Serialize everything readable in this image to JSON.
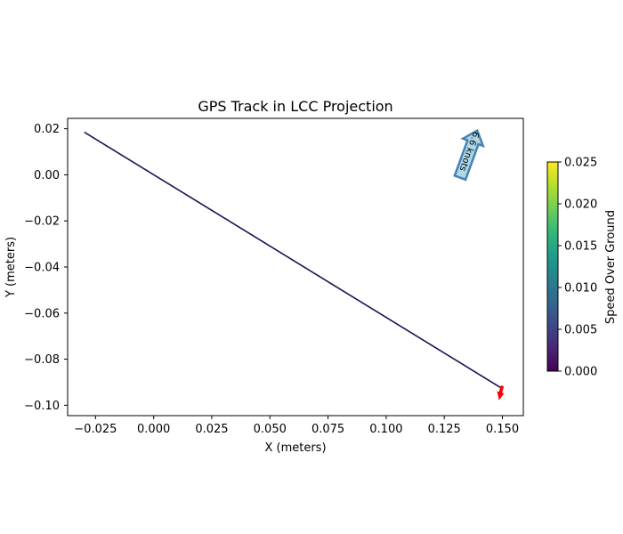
{
  "chart_data": {
    "type": "line",
    "title": "GPS Track in LCC Projection",
    "xlabel": "X (meters)",
    "ylabel": "Y (meters)",
    "xlim": [
      -0.037,
      0.159
    ],
    "ylim": [
      -0.1045,
      0.0245
    ],
    "xticks": [
      -0.025,
      0.0,
      0.025,
      0.05,
      0.075,
      0.1,
      0.125,
      0.15
    ],
    "xtick_labels": [
      "−0.025",
      "0.000",
      "0.025",
      "0.050",
      "0.075",
      "0.100",
      "0.125",
      "0.150"
    ],
    "yticks": [
      0.02,
      0.0,
      -0.02,
      -0.04,
      -0.06,
      -0.08,
      -0.1
    ],
    "ytick_labels": [
      "0.02",
      "0.00",
      "−0.02",
      "−0.04",
      "−0.06",
      "−0.08",
      "−0.10"
    ],
    "grid": false,
    "series": [
      {
        "x": [
          -0.0298,
          0.1495
        ],
        "y": [
          0.0185,
          -0.0925
        ],
        "color": "#1f1056"
      }
    ],
    "end_marker": {
      "x": 0.149,
      "y": -0.0965,
      "color": "#ff0000"
    },
    "annotation": {
      "text": "6.6 knots",
      "x_range": [
        0.13,
        0.141
      ],
      "y_range": [
        -0.0015,
        0.0195
      ],
      "fill": "#add8e6",
      "edge": "#4682b4"
    },
    "colorbar": {
      "label": "Speed Over Ground",
      "min": 0.0,
      "max": 0.025,
      "ticks": [
        0.0,
        0.005,
        0.01,
        0.015,
        0.02,
        0.025
      ],
      "tick_labels": [
        "0.000",
        "0.005",
        "0.010",
        "0.015",
        "0.020",
        "0.025"
      ],
      "colormap": "viridis",
      "colors": [
        "#440154",
        "#482878",
        "#3e4989",
        "#31688e",
        "#26828e",
        "#1f9e89",
        "#35b779",
        "#6ece58",
        "#b5de2b",
        "#fde725"
      ]
    }
  }
}
